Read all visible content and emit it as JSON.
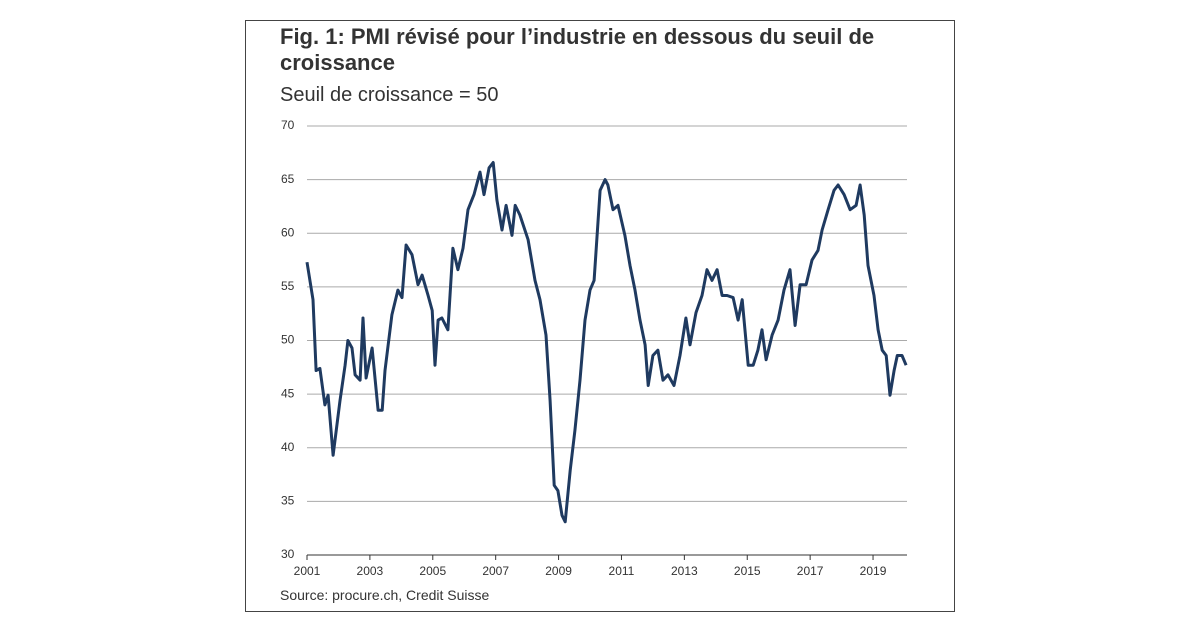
{
  "chart_data": {
    "type": "line",
    "title": "Fig. 1: PMI révisé pour l’industrie en dessous du seuil de croissance",
    "subtitle": "Seuil de croissance = 50",
    "source": "Source: procure.ch, Credit Suisse",
    "xlim": [
      2001,
      2020.08
    ],
    "xticks": [
      2001,
      2003,
      2005,
      2007,
      2009,
      2011,
      2013,
      2015,
      2017,
      2019
    ],
    "ylim": [
      30,
      70
    ],
    "yticks": [
      30,
      35,
      40,
      45,
      50,
      55,
      60,
      65,
      70
    ],
    "grid": true,
    "series": [
      {
        "name": "PMI",
        "color": "#1f3a60",
        "x": [
          2001.0,
          2001.19,
          2001.29,
          2001.41,
          2001.57,
          2001.67,
          2001.83,
          2002.05,
          2002.21,
          2002.3,
          2002.43,
          2002.53,
          2002.69,
          2002.78,
          2002.88,
          2003.07,
          2003.26,
          2003.39,
          2003.48,
          2003.7,
          2003.89,
          2004.02,
          2004.15,
          2004.34,
          2004.53,
          2004.66,
          2004.85,
          2004.98,
          2005.07,
          2005.17,
          2005.29,
          2005.48,
          2005.64,
          2005.8,
          2005.96,
          2006.12,
          2006.31,
          2006.5,
          2006.63,
          2006.79,
          2006.92,
          2007.04,
          2007.2,
          2007.33,
          2007.52,
          2007.62,
          2007.77,
          2008.03,
          2008.25,
          2008.41,
          2008.6,
          2008.73,
          2008.86,
          2008.98,
          2009.11,
          2009.21,
          2009.37,
          2009.52,
          2009.68,
          2009.84,
          2010.0,
          2010.13,
          2010.32,
          2010.48,
          2010.57,
          2010.73,
          2010.89,
          2011.11,
          2011.27,
          2011.43,
          2011.59,
          2011.75,
          2011.85,
          2012.0,
          2012.16,
          2012.32,
          2012.48,
          2012.67,
          2012.86,
          2013.05,
          2013.18,
          2013.37,
          2013.56,
          2013.72,
          2013.88,
          2014.04,
          2014.2,
          2014.36,
          2014.55,
          2014.71,
          2014.84,
          2015.03,
          2015.19,
          2015.34,
          2015.47,
          2015.6,
          2015.79,
          2015.98,
          2016.17,
          2016.36,
          2016.52,
          2016.68,
          2016.87,
          2017.06,
          2017.25,
          2017.38,
          2017.57,
          2017.76,
          2017.89,
          2018.08,
          2018.27,
          2018.46,
          2018.59,
          2018.72,
          2018.84,
          2019.03,
          2019.16,
          2019.29,
          2019.42,
          2019.54,
          2019.67,
          2019.77,
          2019.92,
          2020.05
        ],
        "values": [
          57.3,
          53.8,
          47.2,
          47.4,
          44,
          44.9,
          39.3,
          44.4,
          47.7,
          50,
          49.3,
          46.8,
          46.3,
          52.1,
          46.5,
          49.3,
          43.5,
          43.5,
          47.2,
          52.4,
          54.7,
          54,
          58.9,
          58,
          55.2,
          56.1,
          54.2,
          52.8,
          47.7,
          51.9,
          52.1,
          51,
          58.6,
          56.6,
          58.6,
          62.2,
          63.6,
          65.7,
          63.6,
          66.1,
          66.6,
          63.1,
          60.3,
          62.6,
          59.8,
          62.6,
          61.7,
          59.4,
          55.6,
          53.8,
          50.5,
          44.4,
          36.5,
          36,
          33.7,
          33.1,
          37.9,
          41.6,
          46.3,
          51.9,
          54.7,
          55.6,
          64,
          65,
          64.5,
          62.2,
          62.6,
          59.8,
          57,
          54.7,
          51.9,
          49.6,
          45.8,
          48.6,
          49.1,
          46.3,
          46.8,
          45.8,
          48.6,
          52.1,
          49.6,
          52.6,
          54.2,
          56.6,
          55.6,
          56.6,
          54.2,
          54.2,
          54,
          51.9,
          53.8,
          47.7,
          47.7,
          49.1,
          51,
          48.2,
          50.5,
          51.9,
          54.7,
          56.6,
          51.4,
          55.2,
          55.2,
          57.5,
          58.4,
          60.3,
          62.2,
          64,
          64.5,
          63.6,
          62.2,
          62.6,
          64.5,
          61.7,
          57,
          54.2,
          51,
          49.1,
          48.6,
          44.9,
          47.2,
          48.6,
          48.6,
          47.7
        ]
      }
    ]
  }
}
